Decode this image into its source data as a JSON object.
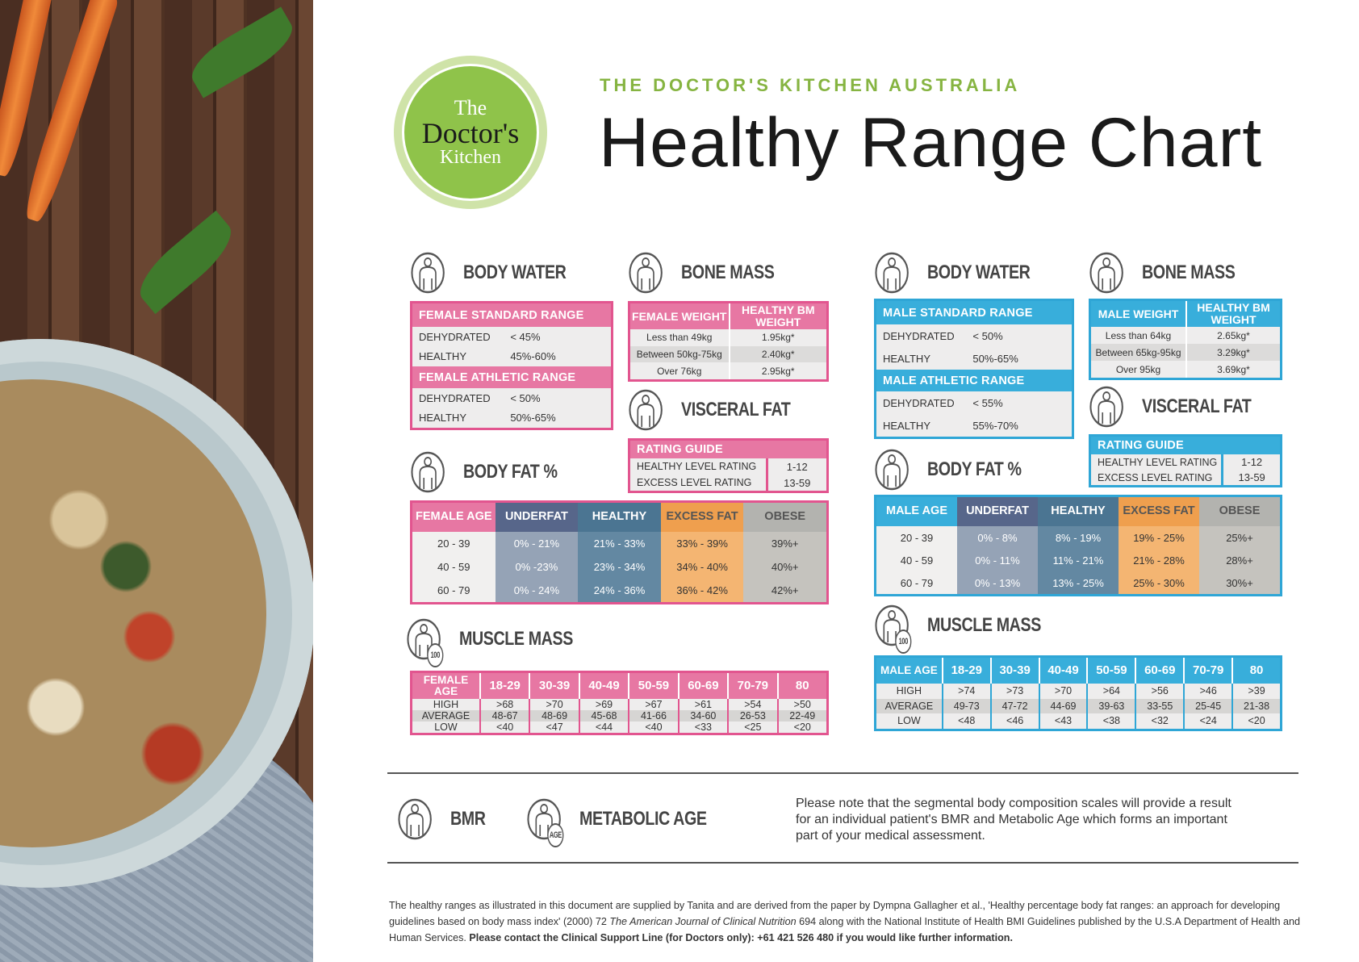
{
  "header": {
    "logo": {
      "line1": "The",
      "line2": "Doctor's",
      "line3": "Kitchen"
    },
    "subtitle": "THE DOCTOR'S KITCHEN AUSTRALIA",
    "title": "Healthy Range Chart"
  },
  "headings": {
    "body_water": "BODY WATER",
    "bone_mass": "BONE MASS",
    "visceral_fat": "VISCERAL FAT",
    "body_fat": "BODY FAT %",
    "muscle_mass": "MUSCLE MASS",
    "bmr": "BMR",
    "metabolic_age": "METABOLIC AGE",
    "age_badge": "AGE",
    "muscle_badge": "100"
  },
  "female": {
    "body_water": {
      "standard_header": "FEMALE STANDARD RANGE",
      "standard_rows": [
        [
          "DEHYDRATED",
          "< 45%"
        ],
        [
          "HEALTHY",
          "45%-60%"
        ]
      ],
      "athletic_header": "FEMALE ATHLETIC RANGE",
      "athletic_rows": [
        [
          "DEHYDRATED",
          "< 50%"
        ],
        [
          "HEALTHY",
          "50%-65%"
        ]
      ]
    },
    "bone_mass": {
      "headers": [
        "FEMALE WEIGHT",
        "HEALTHY BM WEIGHT"
      ],
      "rows": [
        [
          "Less than 49kg",
          "1.95kg*"
        ],
        [
          "Between 50kg-75kg",
          "2.40kg*"
        ],
        [
          "Over 76kg",
          "2.95kg*"
        ]
      ]
    },
    "visceral": {
      "header": "RATING GUIDE",
      "rows": [
        [
          "HEALTHY LEVEL RATING",
          "1-12"
        ],
        [
          "EXCESS LEVEL RATING",
          "13-59"
        ]
      ]
    },
    "body_fat": {
      "headers": [
        "FEMALE AGE",
        "UNDERFAT",
        "HEALTHY",
        "EXCESS FAT",
        "OBESE"
      ],
      "rows": [
        [
          "20 - 39",
          "0% - 21%",
          "21% - 33%",
          "33% - 39%",
          "39%+"
        ],
        [
          "40 - 59",
          "0% -23%",
          "23% - 34%",
          "34% - 40%",
          "40%+"
        ],
        [
          "60 - 79",
          "0% - 24%",
          "24% - 36%",
          "36% - 42%",
          "42%+"
        ]
      ]
    },
    "muscle": {
      "headers": [
        "FEMALE AGE",
        "18-29",
        "30-39",
        "40-49",
        "50-59",
        "60-69",
        "70-79",
        "80"
      ],
      "rows": [
        [
          "HIGH",
          ">68",
          ">70",
          ">69",
          ">67",
          ">61",
          ">54",
          ">50"
        ],
        [
          "AVERAGE",
          "48-67",
          "48-69",
          "45-68",
          "41-66",
          "34-60",
          "26-53",
          "22-49"
        ],
        [
          "LOW",
          "<40",
          "<47",
          "<44",
          "<40",
          "<33",
          "<25",
          "<20"
        ]
      ]
    }
  },
  "male": {
    "body_water": {
      "standard_header": "MALE STANDARD RANGE",
      "standard_rows": [
        [
          "DEHYDRATED",
          "< 50%"
        ],
        [
          "HEALTHY",
          "50%-65%"
        ]
      ],
      "athletic_header": "MALE ATHLETIC RANGE",
      "athletic_rows": [
        [
          "DEHYDRATED",
          "< 55%"
        ],
        [
          "HEALTHY",
          "55%-70%"
        ]
      ]
    },
    "bone_mass": {
      "headers": [
        "MALE WEIGHT",
        "HEALTHY BM WEIGHT"
      ],
      "rows": [
        [
          "Less than 64kg",
          "2.65kg*"
        ],
        [
          "Between 65kg-95kg",
          "3.29kg*"
        ],
        [
          "Over 95kg",
          "3.69kg*"
        ]
      ]
    },
    "visceral": {
      "header": "RATING GUIDE",
      "rows": [
        [
          "HEALTHY LEVEL RATING",
          "1-12"
        ],
        [
          "EXCESS LEVEL RATING",
          "13-59"
        ]
      ]
    },
    "body_fat": {
      "headers": [
        "MALE AGE",
        "UNDERFAT",
        "HEALTHY",
        "EXCESS FAT",
        "OBESE"
      ],
      "rows": [
        [
          "20 - 39",
          "0% - 8%",
          "8% - 19%",
          "19% - 25%",
          "25%+"
        ],
        [
          "40 - 59",
          "0% - 11%",
          "11% - 21%",
          "21% - 28%",
          "28%+"
        ],
        [
          "60 - 79",
          "0% - 13%",
          "13% - 25%",
          "25% - 30%",
          "30%+"
        ]
      ]
    },
    "muscle": {
      "headers": [
        "MALE AGE",
        "18-29",
        "30-39",
        "40-49",
        "50-59",
        "60-69",
        "70-79",
        "80"
      ],
      "rows": [
        [
          "HIGH",
          ">74",
          ">73",
          ">70",
          ">64",
          ">56",
          ">46",
          ">39"
        ],
        [
          "AVERAGE",
          "49-73",
          "47-72",
          "44-69",
          "39-63",
          "33-55",
          "25-45",
          "21-38"
        ],
        [
          "LOW",
          "<48",
          "<46",
          "<43",
          "<38",
          "<32",
          "<24",
          "<20"
        ]
      ]
    }
  },
  "note": "Please note that the segmental body composition scales will provide a result for an individual patient's BMR and Metabolic Age which forms an important part of your medical assessment.",
  "footer": {
    "part1": "The healthy ranges as illustrated in this document are supplied by Tanita and are derived from the paper by Dympna Gallagher et al., 'Healthy percentage body fat ranges: an approach for developing guidelines based on body mass index' (2000) 72 ",
    "journal": "The American Journal of Clinical Nutrition",
    "part2": " 694 along with the National Institute of Health BMI Guidelines published by the U.S.A Department of Health and Human Services. ",
    "bold": "Please contact the Clinical Support Line (for Doctors only): +61 421 526 480 if you would like further information."
  },
  "colors": {
    "female": "#e2558f",
    "male": "#2fa6d6",
    "brand_green": "#86b441",
    "underfat": "#94a2b5",
    "healthy": "#6489a3",
    "excess": "#f3b470",
    "obese": "#c4c2bd"
  }
}
